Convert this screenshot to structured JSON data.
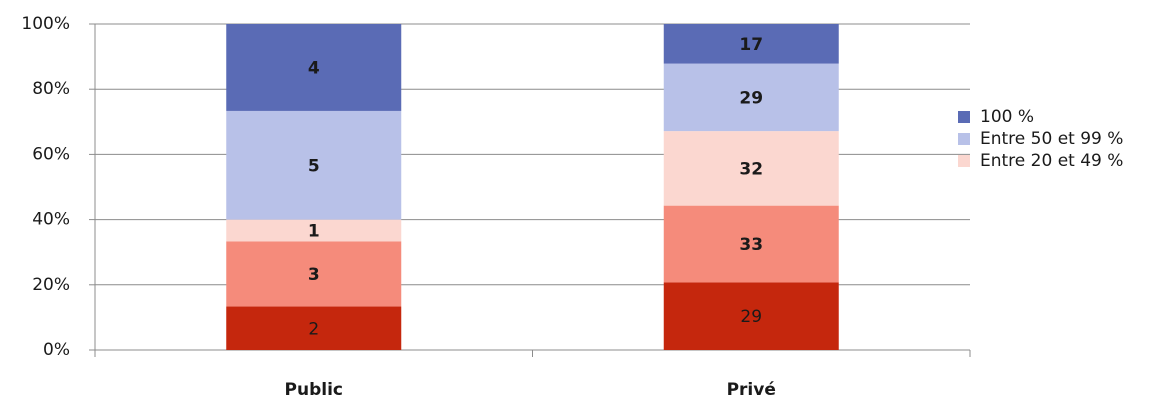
{
  "chart_data": {
    "type": "bar",
    "stacking": "percent",
    "categories": [
      "Public",
      "Privé"
    ],
    "series": [
      {
        "color": "#c5270d",
        "values": [
          2,
          29
        ]
      },
      {
        "color": "#f58b7b",
        "values": [
          3,
          33
        ]
      },
      {
        "name": "Entre 20 et 49 %",
        "color": "#fbd7d0",
        "values": [
          1,
          32
        ]
      },
      {
        "name": "Entre 50 et 99 %",
        "color": "#b8c1e8",
        "values": [
          5,
          29
        ]
      },
      {
        "name": "100 %",
        "color": "#5a6bb5",
        "values": [
          4,
          17
        ]
      }
    ],
    "ylim": [
      0,
      100
    ],
    "yticks": [
      {
        "value": 0,
        "label": "0%"
      },
      {
        "value": 20,
        "label": "20%"
      },
      {
        "value": 40,
        "label": "40%"
      },
      {
        "value": 60,
        "label": "60%"
      },
      {
        "value": 80,
        "label": "80%"
      },
      {
        "value": 100,
        "label": "100%"
      }
    ],
    "grid": true,
    "legend": "right"
  }
}
